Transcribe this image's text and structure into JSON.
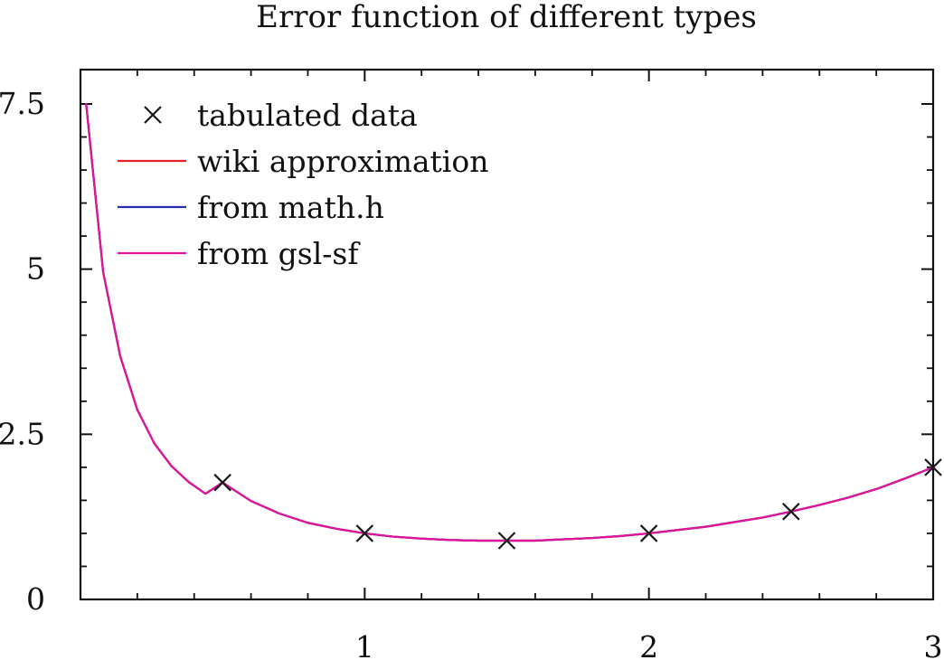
{
  "chart_data": {
    "type": "line",
    "title": "Error function of different types",
    "xlabel": "",
    "ylabel": "",
    "xlim": [
      0.0,
      3.0
    ],
    "ylim": [
      0,
      7.5
    ],
    "x_ticks": [
      1,
      2,
      3
    ],
    "x_tick_labels": [
      "1",
      "2",
      "3"
    ],
    "y_ticks": [
      0,
      2.5,
      5,
      7.5
    ],
    "y_tick_labels": [
      "0",
      "2.5",
      "5",
      "7.5"
    ],
    "x_minor_step": 0.2,
    "y_minor_step": 0.5,
    "grid": false,
    "legend_position": "top-left",
    "series": [
      {
        "name": "tabulated data",
        "kind": "points",
        "marker": "x",
        "color": "#1a1a1a",
        "x": [
          0.5,
          1.0,
          1.5,
          2.0,
          2.5,
          3.0
        ],
        "y": [
          1.77,
          1.0,
          0.89,
          1.0,
          1.33,
          2.0
        ]
      },
      {
        "name": "wiki approximation",
        "kind": "line",
        "color": "#e8202a",
        "x": [
          0.02,
          0.08,
          0.14,
          0.2,
          0.26,
          0.32,
          0.38,
          0.44,
          0.5,
          0.6,
          0.7,
          0.8,
          0.9,
          1.0,
          1.1,
          1.2,
          1.3,
          1.4,
          1.5,
          1.6,
          1.7,
          1.8,
          1.9,
          2.0,
          2.1,
          2.2,
          2.3,
          2.4,
          2.5,
          2.6,
          2.7,
          2.8,
          2.9,
          3.0
        ],
        "y": [
          7.5,
          4.95,
          3.68,
          2.87,
          2.36,
          2.02,
          1.78,
          1.6,
          1.77,
          1.49,
          1.3,
          1.16,
          1.07,
          1.0,
          0.95,
          0.92,
          0.9,
          0.89,
          0.89,
          0.89,
          0.91,
          0.93,
          0.96,
          1.0,
          1.05,
          1.1,
          1.17,
          1.24,
          1.33,
          1.43,
          1.54,
          1.67,
          1.83,
          2.0
        ]
      },
      {
        "name": "from math.h",
        "kind": "line",
        "color": "#2a2ab0",
        "x": [
          0.02,
          0.08,
          0.14,
          0.2,
          0.26,
          0.32,
          0.38,
          0.44,
          0.5,
          0.6,
          0.7,
          0.8,
          0.9,
          1.0,
          1.1,
          1.2,
          1.3,
          1.4,
          1.5,
          1.6,
          1.7,
          1.8,
          1.9,
          2.0,
          2.1,
          2.2,
          2.3,
          2.4,
          2.5,
          2.6,
          2.7,
          2.8,
          2.9,
          3.0
        ],
        "y": [
          7.5,
          4.95,
          3.68,
          2.87,
          2.36,
          2.02,
          1.78,
          1.6,
          1.77,
          1.49,
          1.3,
          1.16,
          1.07,
          1.0,
          0.95,
          0.92,
          0.9,
          0.89,
          0.89,
          0.89,
          0.91,
          0.93,
          0.96,
          1.0,
          1.05,
          1.1,
          1.17,
          1.24,
          1.33,
          1.43,
          1.54,
          1.67,
          1.83,
          2.0
        ]
      },
      {
        "name": "from gsl-sf",
        "kind": "line",
        "color": "#e0149a",
        "x": [
          0.02,
          0.08,
          0.14,
          0.2,
          0.26,
          0.32,
          0.38,
          0.44,
          0.5,
          0.6,
          0.7,
          0.8,
          0.9,
          1.0,
          1.1,
          1.2,
          1.3,
          1.4,
          1.5,
          1.6,
          1.7,
          1.8,
          1.9,
          2.0,
          2.1,
          2.2,
          2.3,
          2.4,
          2.5,
          2.6,
          2.7,
          2.8,
          2.9,
          3.0
        ],
        "y": [
          7.5,
          4.95,
          3.68,
          2.87,
          2.36,
          2.02,
          1.78,
          1.6,
          1.77,
          1.49,
          1.3,
          1.16,
          1.07,
          1.0,
          0.95,
          0.92,
          0.9,
          0.89,
          0.89,
          0.89,
          0.91,
          0.93,
          0.96,
          1.0,
          1.05,
          1.1,
          1.17,
          1.24,
          1.33,
          1.43,
          1.54,
          1.67,
          1.83,
          2.0
        ]
      }
    ]
  }
}
